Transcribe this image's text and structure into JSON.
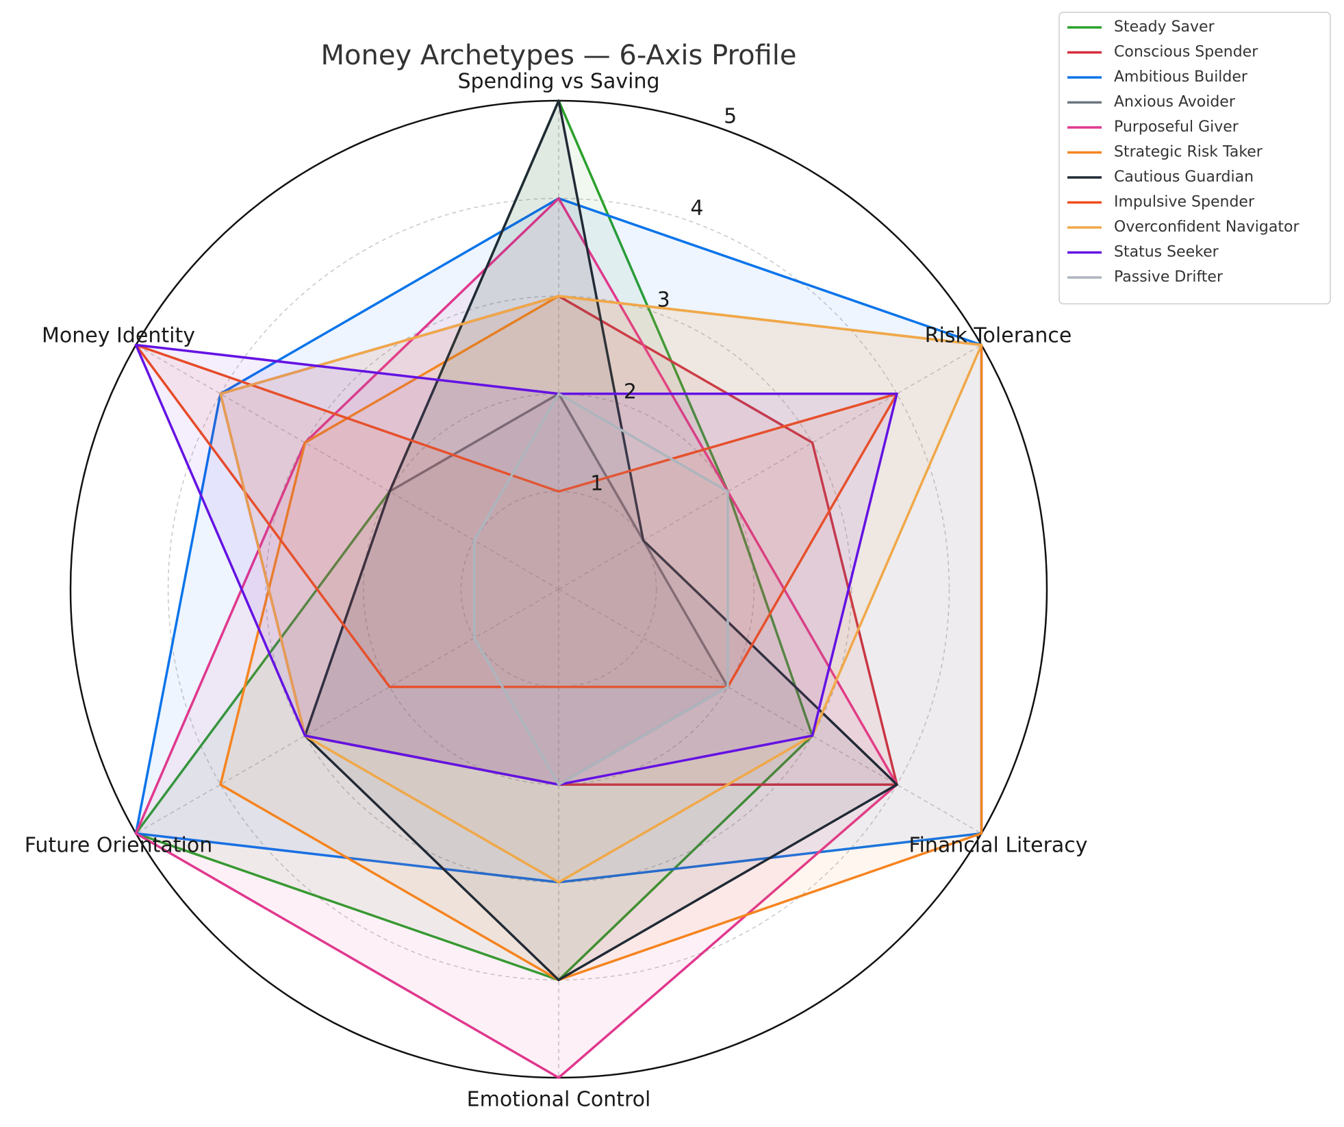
{
  "chart_data": {
    "type": "radar",
    "title": "Money Archetypes — 6-Axis Profile",
    "axes": [
      "Spending vs Saving",
      "Risk Tolerance",
      "Financial Literacy",
      "Emotional Control",
      "Future Orientation",
      "Money Identity"
    ],
    "rlim": [
      0,
      5
    ],
    "rticks": [
      1,
      2,
      3,
      4,
      5
    ],
    "grid": true,
    "legend_position": "top-right",
    "series": [
      {
        "name": "Steady Saver",
        "color": "#2ca02c",
        "values": [
          5,
          2,
          3,
          4,
          5,
          2
        ]
      },
      {
        "name": "Conscious Spender",
        "color": "#d62c3c",
        "values": [
          3,
          3,
          4,
          2,
          3,
          4
        ]
      },
      {
        "name": "Ambitious Builder",
        "color": "#0a74ea",
        "values": [
          4,
          5,
          5,
          3,
          5,
          4
        ]
      },
      {
        "name": "Anxious Avoider",
        "color": "#6c757d",
        "values": [
          2,
          1,
          2,
          2,
          3,
          2
        ]
      },
      {
        "name": "Purposeful Giver",
        "color": "#e0388e",
        "values": [
          4,
          2,
          4,
          5,
          5,
          3
        ]
      },
      {
        "name": "Strategic Risk Taker",
        "color": "#f5841f",
        "values": [
          3,
          5,
          5,
          4,
          4,
          3
        ]
      },
      {
        "name": "Cautious Guardian",
        "color": "#212a36",
        "values": [
          5,
          1,
          4,
          4,
          3,
          2
        ]
      },
      {
        "name": "Impulsive Spender",
        "color": "#f04f1c",
        "values": [
          1,
          4,
          2,
          1,
          2,
          5
        ]
      },
      {
        "name": "Overconfident Navigator",
        "color": "#f0a848",
        "values": [
          3,
          5,
          3,
          3,
          3,
          4
        ]
      },
      {
        "name": "Status Seeker",
        "color": "#6412e3",
        "values": [
          2,
          4,
          3,
          2,
          3,
          5
        ]
      },
      {
        "name": "Passive Drifter",
        "color": "#adb5bd",
        "values": [
          2,
          2,
          2,
          2,
          1,
          1
        ]
      }
    ]
  }
}
